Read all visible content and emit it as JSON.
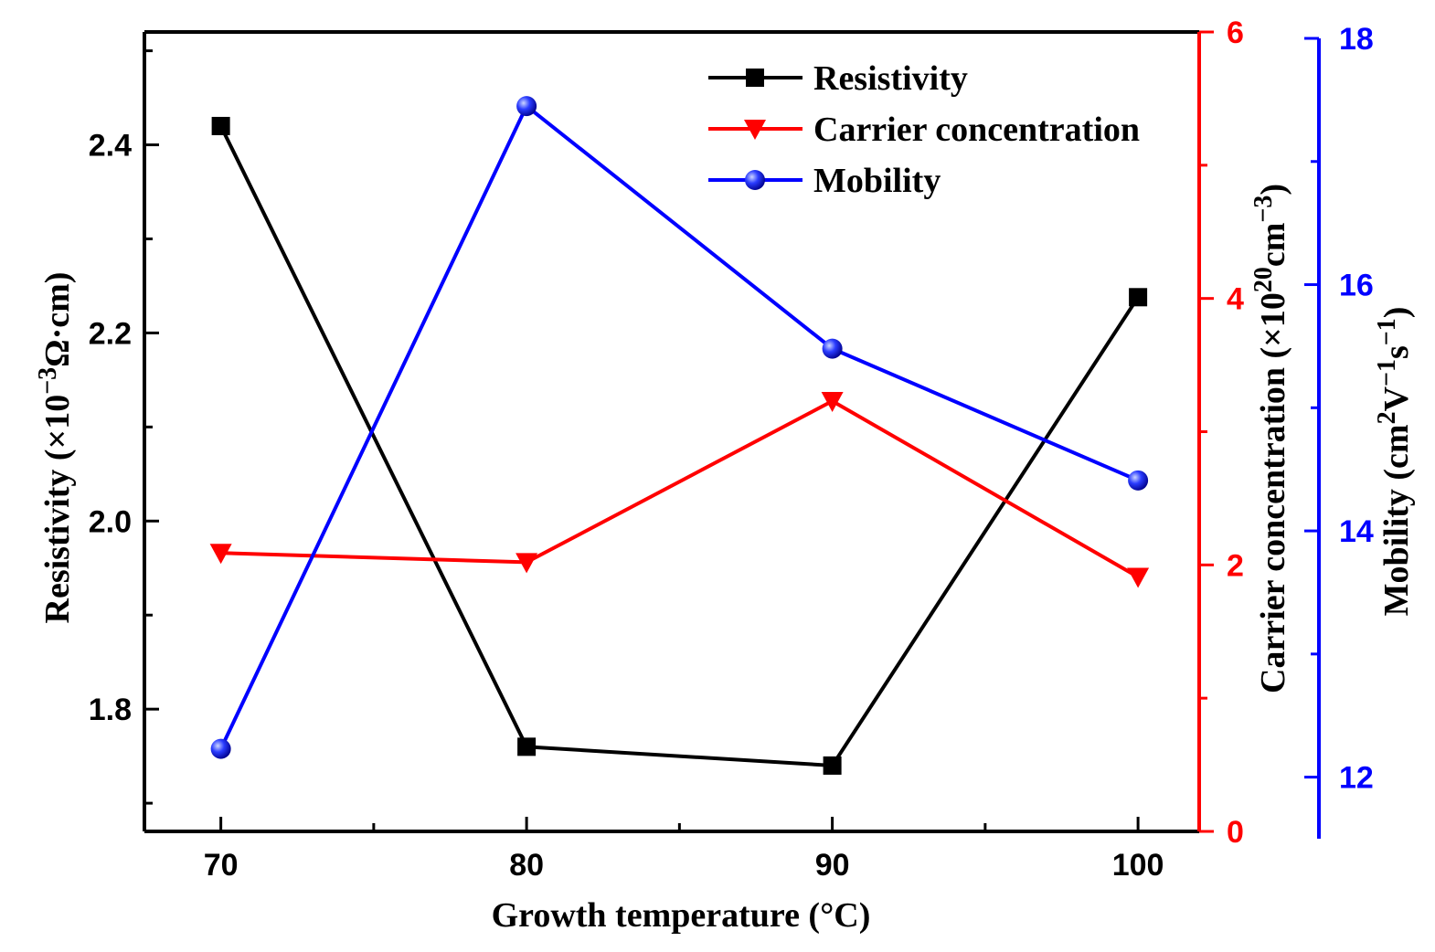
{
  "chart_data": {
    "type": "line",
    "title": "",
    "xlabel": "Growth temperature (°C)",
    "x": [
      70,
      80,
      90,
      100
    ],
    "xlim": [
      67.5,
      102
    ],
    "x_ticks": [
      "70",
      "80",
      "90",
      "100"
    ],
    "x_minor": [
      75,
      85,
      95
    ],
    "axes": {
      "left": {
        "label": {
          "main": "Resistivity (×10",
          "sup": "−3",
          "tail": "Ω·cm)"
        },
        "ylim": [
          1.67,
          2.52
        ],
        "ticks": [
          "1.8",
          "2.0",
          "2.2",
          "2.4"
        ],
        "minor": [
          1.7,
          1.9,
          2.1,
          2.3,
          2.5
        ],
        "color": "#000000"
      },
      "right1": {
        "label": {
          "main": "Carrier concentration (×10",
          "sup": "20",
          "mid": "cm",
          "sup2": "−3",
          "tail": ")"
        },
        "ylim": [
          0,
          6
        ],
        "ticks": [
          "0",
          "2",
          "4",
          "6"
        ],
        "minor": [
          1,
          3,
          5
        ],
        "color": "#ff0000"
      },
      "right2": {
        "label": {
          "main": "Mobility (cm",
          "sup": "2",
          "mid": "V",
          "sup2": "−1",
          "mid2": "s",
          "sup3": "−1",
          "tail": ")"
        },
        "ylim": [
          11.5,
          18
        ],
        "ticks": [
          "12",
          "14",
          "16",
          "18"
        ],
        "minor": [
          13,
          15,
          17
        ],
        "color": "#0000ff"
      }
    },
    "series": [
      {
        "name": "Resistivity",
        "axis": "left",
        "color": "#000000",
        "marker": "square",
        "values": [
          2.42,
          1.76,
          1.74,
          2.238
        ]
      },
      {
        "name": "Carrier concentration",
        "axis": "right1",
        "color": "#ff0000",
        "marker": "triangle-down",
        "values": [
          2.09,
          2.02,
          3.23,
          1.91
        ]
      },
      {
        "name": "Mobility",
        "axis": "right2",
        "color": "#0000ff",
        "marker": "sphere",
        "values": [
          12.23,
          17.45,
          15.48,
          14.41
        ]
      }
    ],
    "legend": {
      "position": "top-right",
      "entries": [
        "Resistivity",
        "Carrier concentration",
        "Mobility"
      ]
    }
  }
}
